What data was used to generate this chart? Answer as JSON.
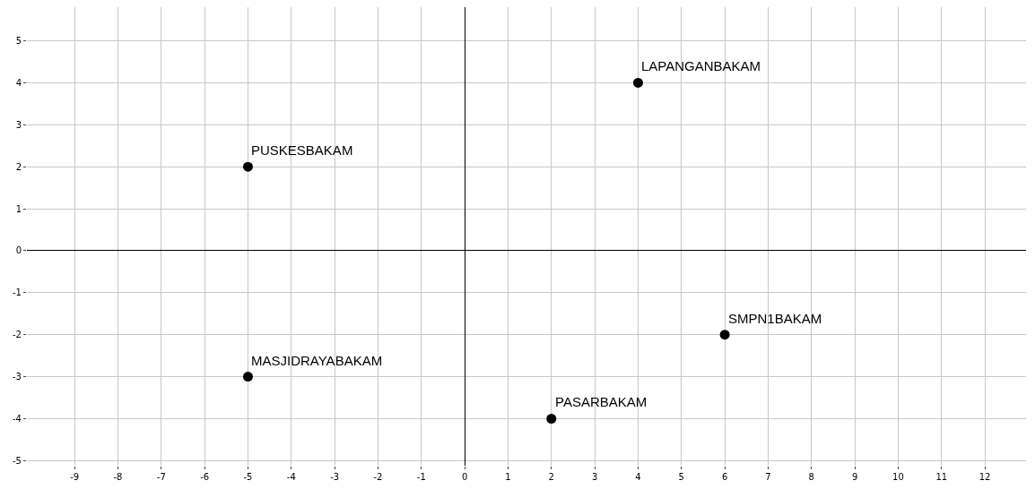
{
  "chart_data": {
    "type": "scatter",
    "x": [
      4,
      -5,
      6,
      -5,
      2
    ],
    "series": [
      {
        "color": "#000000",
        "values": [
          4,
          2,
          -2,
          -3,
          -4
        ]
      }
    ],
    "annotations": [
      {
        "text": "LAPANGANBAKAM",
        "x": 4,
        "y": 4
      },
      {
        "text": "PUSKESBAKAM",
        "x": -5,
        "y": 2
      },
      {
        "text": "SMPN1BAKAM",
        "x": 6,
        "y": -2
      },
      {
        "text": "MASJIDRAYABAKAM",
        "x": -5,
        "y": -3
      },
      {
        "text": "PASARBAKAM",
        "x": 2,
        "y": -4
      }
    ],
    "xlim": [
      -10.1,
      12.95
    ],
    "ylim": [
      -5.12,
      5.8
    ],
    "xticks": [
      -9,
      -8,
      -7,
      -6,
      -5,
      -4,
      -3,
      -2,
      -1,
      0,
      1,
      2,
      3,
      4,
      5,
      6,
      7,
      8,
      9,
      10,
      11,
      12
    ],
    "yticks": [
      -5,
      -4,
      -3,
      -2,
      -1,
      0,
      1,
      2,
      3,
      4,
      5
    ],
    "grid": true,
    "marker": "circle",
    "legend": false
  }
}
